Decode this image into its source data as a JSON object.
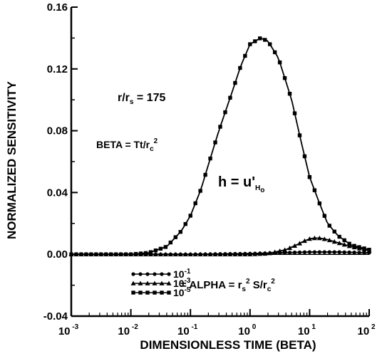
{
  "chart_data": {
    "type": "line",
    "title": "",
    "xlabel": "DIMENSIONLESS TIME (BETA)",
    "ylabel": "NORMALIZED SENSITIVITY",
    "xscale": "log",
    "xlim": [
      0.001,
      100
    ],
    "ylim": [
      -0.04,
      0.16
    ],
    "x_ticks": [
      {
        "base": "10",
        "exp": "-3",
        "value": 0.001
      },
      {
        "base": "10",
        "exp": "-2",
        "value": 0.01
      },
      {
        "base": "10",
        "exp": "-1",
        "value": 0.1
      },
      {
        "base": "10",
        "exp": "0",
        "value": 1
      },
      {
        "base": "10",
        "exp": "1",
        "value": 10
      },
      {
        "base": "10",
        "exp": "2",
        "value": 100
      }
    ],
    "y_ticks": [
      {
        "label": "-0.04",
        "value": -0.04
      },
      {
        "label": "0.00",
        "value": 0.0
      },
      {
        "label": "0.04",
        "value": 0.04
      },
      {
        "label": "0.08",
        "value": 0.08
      },
      {
        "label": "0.12",
        "value": 0.12
      },
      {
        "label": "0.16",
        "value": 0.16
      }
    ],
    "grid": false,
    "legend_position": "bottom-center",
    "series": [
      {
        "name": "10^-1",
        "marker": "circle",
        "legend": {
          "base": "10",
          "exp": "-1"
        },
        "x": [
          0.001,
          0.01,
          0.1,
          1,
          10,
          30,
          100
        ],
        "y": [
          0.0,
          0.0,
          0.0,
          0.0005,
          0.0015,
          0.0015,
          0.001
        ]
      },
      {
        "name": "10^-3",
        "marker": "triangle",
        "legend": {
          "base": "10",
          "exp": "-3"
        },
        "x": [
          0.001,
          0.1,
          1,
          2,
          4,
          6,
          8,
          10,
          12,
          15,
          20,
          30,
          50,
          100
        ],
        "y": [
          0.0,
          0.0,
          0.0,
          0.0005,
          0.003,
          0.006,
          0.0085,
          0.01,
          0.0105,
          0.0105,
          0.0095,
          0.0075,
          0.005,
          0.0025
        ]
      },
      {
        "name": "10^-5",
        "marker": "square",
        "legend": {
          "base": "10",
          "exp": "-5"
        },
        "x": [
          0.001,
          0.01,
          0.02,
          0.04,
          0.07,
          0.1,
          0.15,
          0.2,
          0.3,
          0.5,
          0.7,
          1,
          1.5,
          2,
          3,
          5,
          7,
          10,
          15,
          20,
          30,
          50,
          100
        ],
        "y": [
          0.0,
          0.0,
          0.001,
          0.005,
          0.015,
          0.025,
          0.042,
          0.058,
          0.08,
          0.105,
          0.122,
          0.136,
          0.14,
          0.138,
          0.127,
          0.1,
          0.075,
          0.05,
          0.032,
          0.02,
          0.012,
          0.006,
          0.003
        ]
      }
    ],
    "annotations": {
      "ratio": {
        "text": "r/r",
        "sub": "s",
        "rest": " = 175"
      },
      "beta_def": {
        "text": "BETA = Tt/r",
        "sub": "c",
        "sup": "2"
      },
      "h_def": {
        "text": "h = u'",
        "sub": "H",
        "subsub": "o"
      },
      "alpha_def": {
        "text": "= ALPHA = r",
        "sub": "s",
        "sup": "2",
        "rest": " S/r",
        "sub2": "c",
        "sup2": "2"
      }
    }
  }
}
